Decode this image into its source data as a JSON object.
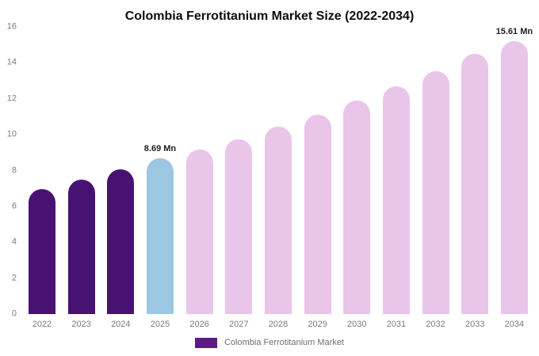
{
  "title": "Colombia Ferrotitanium Market Size (2022-2034)",
  "chart_data": {
    "type": "bar",
    "title": "Colombia Ferrotitanium Market Size (2022-2034)",
    "categories": [
      "2022",
      "2023",
      "2024",
      "2025",
      "2026",
      "2027",
      "2028",
      "2029",
      "2030",
      "2031",
      "2032",
      "2033",
      "2034"
    ],
    "values": [
      6.95,
      7.5,
      8.05,
      8.69,
      9.15,
      9.75,
      10.45,
      11.1,
      11.9,
      12.7,
      13.55,
      14.5,
      15.61
    ],
    "bar_colors": [
      "#481273",
      "#481273",
      "#481273",
      "#9dc6e3",
      "#e9c5ea",
      "#e9c5ea",
      "#e9c5ea",
      "#e9c5ea",
      "#e9c5ea",
      "#e9c5ea",
      "#e9c5ea",
      "#e9c5ea",
      "#e9c5ea"
    ],
    "xlabel": "",
    "ylabel": "",
    "ylim": [
      0,
      16
    ],
    "yticks": [
      0,
      2,
      4,
      6,
      8,
      10,
      12,
      14,
      16
    ],
    "grid": false,
    "annotations": [
      {
        "index": 3,
        "text": "8.69 Mn"
      },
      {
        "index": 12,
        "text": "15.61 Mn"
      }
    ],
    "legend": {
      "position": "bottom",
      "items": [
        {
          "label": "Colombia Ferrotitanium Market",
          "color": "#5e1b87"
        }
      ]
    }
  }
}
